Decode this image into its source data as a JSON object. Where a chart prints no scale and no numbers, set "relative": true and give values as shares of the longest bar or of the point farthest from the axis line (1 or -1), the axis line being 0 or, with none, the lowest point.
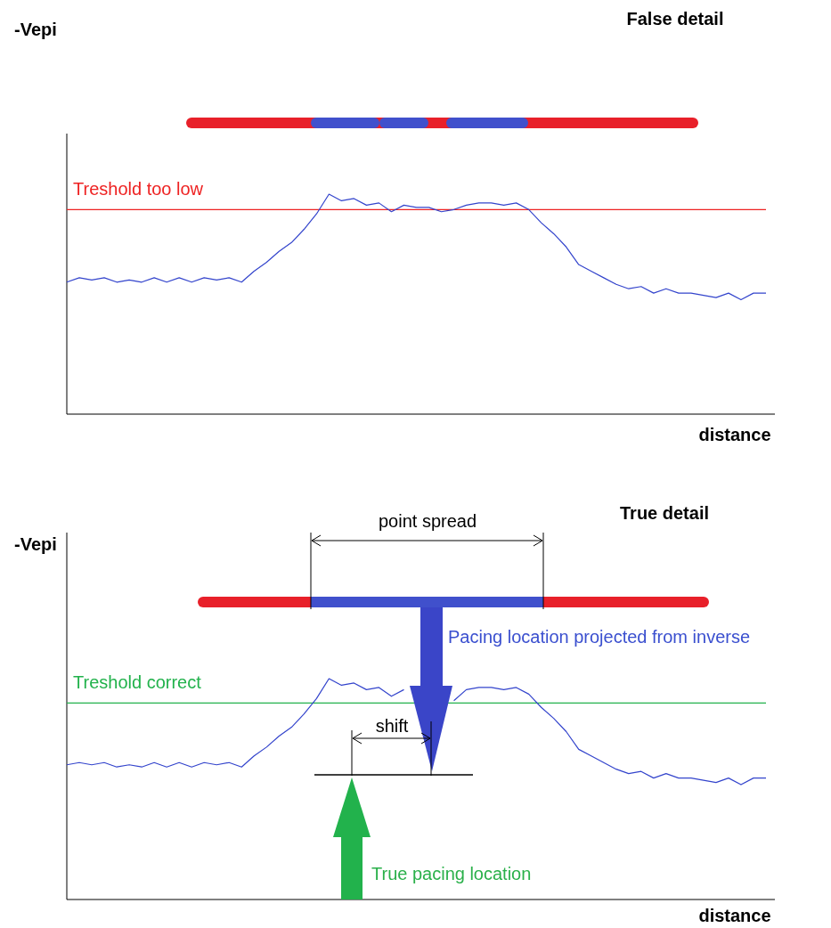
{
  "chart_data": [
    {
      "type": "line",
      "title": "False detail",
      "xlabel": "distance",
      "ylabel": "-Vepi",
      "relative": true,
      "categories": [
        null,
        null,
        null,
        null,
        null,
        null,
        null,
        null,
        null,
        null,
        null,
        null,
        null,
        null,
        null,
        null,
        null,
        null,
        null,
        null,
        null,
        null,
        null,
        null,
        null,
        null,
        null,
        null,
        null,
        null,
        null,
        null,
        null,
        null,
        null,
        null,
        null,
        null,
        null,
        null,
        null,
        null,
        null,
        null,
        null,
        null,
        null,
        null,
        null,
        null,
        null,
        null,
        null,
        null,
        null,
        null,
        null
      ],
      "series": [
        {
          "color": "#3344cc",
          "values": [
            0.6,
            0.62,
            0.61,
            0.62,
            0.6,
            0.61,
            0.6,
            0.62,
            0.6,
            0.62,
            0.6,
            0.62,
            0.61,
            0.62,
            0.6,
            0.65,
            0.69,
            0.74,
            0.78,
            0.84,
            0.91,
            1.0,
            0.97,
            0.98,
            0.95,
            0.96,
            0.92,
            0.95,
            0.94,
            0.94,
            0.92,
            0.93,
            0.95,
            0.96,
            0.96,
            0.95,
            0.96,
            0.93,
            0.87,
            0.82,
            0.76,
            0.68,
            0.65,
            0.62,
            0.59,
            0.57,
            0.58,
            0.55,
            0.57,
            0.55,
            0.55,
            0.54,
            0.53,
            0.55,
            0.52,
            0.55,
            0.55
          ]
        }
      ],
      "ref_lines": [
        {
          "axis": "y",
          "value": 0.93,
          "label": "Treshold too low",
          "color": "#ee2222"
        }
      ]
    },
    {
      "type": "line",
      "title": "True detail",
      "xlabel": "distance",
      "ylabel": "-Vepi",
      "relative": true,
      "categories": [
        null,
        null,
        null,
        null,
        null,
        null,
        null,
        null,
        null,
        null,
        null,
        null,
        null,
        null,
        null,
        null,
        null,
        null,
        null,
        null,
        null,
        null,
        null,
        null,
        null,
        null,
        null,
        null,
        null,
        null,
        null,
        null,
        null,
        null,
        null,
        null,
        null,
        null,
        null,
        null,
        null,
        null,
        null,
        null,
        null,
        null,
        null,
        null,
        null,
        null,
        null,
        null,
        null,
        null,
        null,
        null,
        null
      ],
      "series": [
        {
          "color": "#3344cc",
          "values": [
            0.61,
            0.62,
            0.61,
            0.62,
            0.6,
            0.61,
            0.6,
            0.62,
            0.6,
            0.62,
            0.6,
            0.62,
            0.61,
            0.62,
            0.6,
            0.65,
            0.69,
            0.74,
            0.78,
            0.84,
            0.91,
            1.0,
            0.97,
            0.98,
            0.95,
            0.96,
            0.92,
            0.95,
            null,
            null,
            null,
            0.9,
            0.95,
            0.96,
            0.96,
            0.95,
            0.96,
            0.93,
            0.87,
            0.82,
            0.76,
            0.68,
            0.65,
            0.62,
            0.59,
            0.57,
            0.58,
            0.55,
            0.57,
            0.55,
            0.55,
            0.54,
            0.53,
            0.55,
            0.52,
            0.55,
            0.55
          ]
        }
      ],
      "ref_lines": [
        {
          "axis": "y",
          "value": 0.89,
          "label": "Treshold correct",
          "color": "#22b24c"
        }
      ],
      "annotations": [
        "point spread",
        "shift",
        "Pacing location projected from inverse",
        "True pacing location"
      ]
    }
  ]
}
